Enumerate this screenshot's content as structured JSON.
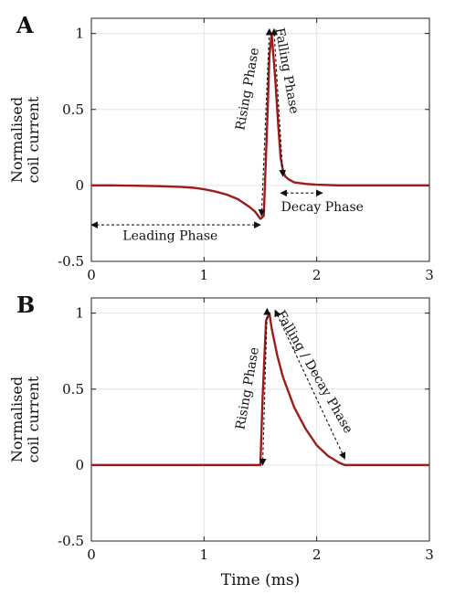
{
  "chart_data": [
    {
      "type": "line",
      "panel_label": "A",
      "ylabel": [
        "Normalised",
        "coil current"
      ],
      "xlabel": "",
      "xlim": [
        0,
        3
      ],
      "ylim": [
        -0.5,
        1.1
      ],
      "xticks": [
        0,
        1,
        2,
        3
      ],
      "yticks": [
        -0.5,
        0,
        0.5,
        1
      ],
      "xtick_labels": [
        "0",
        "1",
        "2",
        "3"
      ],
      "ytick_labels": [
        "-0.5",
        "0",
        "0.5",
        "1"
      ],
      "grid": true,
      "line_color": "#9e1b1b",
      "series": [
        {
          "x": [
            0,
            0.2,
            0.4,
            0.6,
            0.8,
            0.9,
            1.0,
            1.1,
            1.2,
            1.3,
            1.4,
            1.45,
            1.5,
            1.53,
            1.56,
            1.58,
            1.6,
            1.63,
            1.66,
            1.68,
            1.7,
            1.72,
            1.75,
            1.8,
            1.9,
            2.0,
            2.2,
            3.0
          ],
          "y": [
            0,
            0,
            -0.002,
            -0.005,
            -0.01,
            -0.015,
            -0.025,
            -0.04,
            -0.06,
            -0.09,
            -0.14,
            -0.17,
            -0.22,
            -0.2,
            0.4,
            0.85,
            1.0,
            0.72,
            0.38,
            0.18,
            0.1,
            0.06,
            0.04,
            0.02,
            0.01,
            0.005,
            0,
            0
          ]
        }
      ],
      "annotations": [
        {
          "text": "Rising Phase",
          "x": 1.42,
          "y": 0.63,
          "rotate": -80
        },
        {
          "text": "Falling Phase",
          "x": 1.7,
          "y": 0.75,
          "rotate": 80
        },
        {
          "text": "Decay Phase",
          "x": 2.05,
          "y": -0.17,
          "rotate": 0
        },
        {
          "text": "Leading Phase",
          "x": 0.7,
          "y": -0.36,
          "rotate": 0
        }
      ],
      "arrows": [
        {
          "x1": 1.51,
          "y1": -0.2,
          "x2": 1.58,
          "y2": 1.03
        },
        {
          "x1": 1.62,
          "y1": 1.03,
          "x2": 1.7,
          "y2": 0.06
        },
        {
          "x1": 1.68,
          "y1": -0.05,
          "x2": 2.05,
          "y2": -0.05
        },
        {
          "x1": 0.0,
          "y1": -0.26,
          "x2": 1.5,
          "y2": -0.26
        }
      ]
    },
    {
      "type": "line",
      "panel_label": "B",
      "ylabel": [
        "Normalised",
        "coil current"
      ],
      "xlabel": "Time (ms)",
      "xlim": [
        0,
        3
      ],
      "ylim": [
        -0.5,
        1.1
      ],
      "xticks": [
        0,
        1,
        2,
        3
      ],
      "yticks": [
        -0.5,
        0,
        0.5,
        1
      ],
      "xtick_labels": [
        "0",
        "1",
        "2",
        "3"
      ],
      "ytick_labels": [
        "-0.5",
        "0",
        "0.5",
        "1"
      ],
      "grid": true,
      "line_color": "#9e1b1b",
      "series": [
        {
          "x": [
            0,
            1.0,
            1.4,
            1.5,
            1.52,
            1.55,
            1.58,
            1.6,
            1.65,
            1.7,
            1.8,
            1.9,
            2.0,
            2.1,
            2.2,
            2.25,
            3.0
          ],
          "y": [
            0,
            0,
            0,
            0,
            0.45,
            0.95,
            1.0,
            0.9,
            0.72,
            0.58,
            0.38,
            0.24,
            0.13,
            0.06,
            0.015,
            0,
            0
          ]
        }
      ],
      "annotations": [
        {
          "text": "Rising Phase",
          "x": 1.42,
          "y": 0.5,
          "rotate": -80
        },
        {
          "text": "Falling / Decay Phase",
          "x": 1.95,
          "y": 0.6,
          "rotate": 60
        }
      ],
      "arrows": [
        {
          "x1": 1.52,
          "y1": 0.0,
          "x2": 1.56,
          "y2": 1.03
        },
        {
          "x1": 1.63,
          "y1": 1.02,
          "x2": 2.25,
          "y2": 0.04
        }
      ]
    }
  ]
}
